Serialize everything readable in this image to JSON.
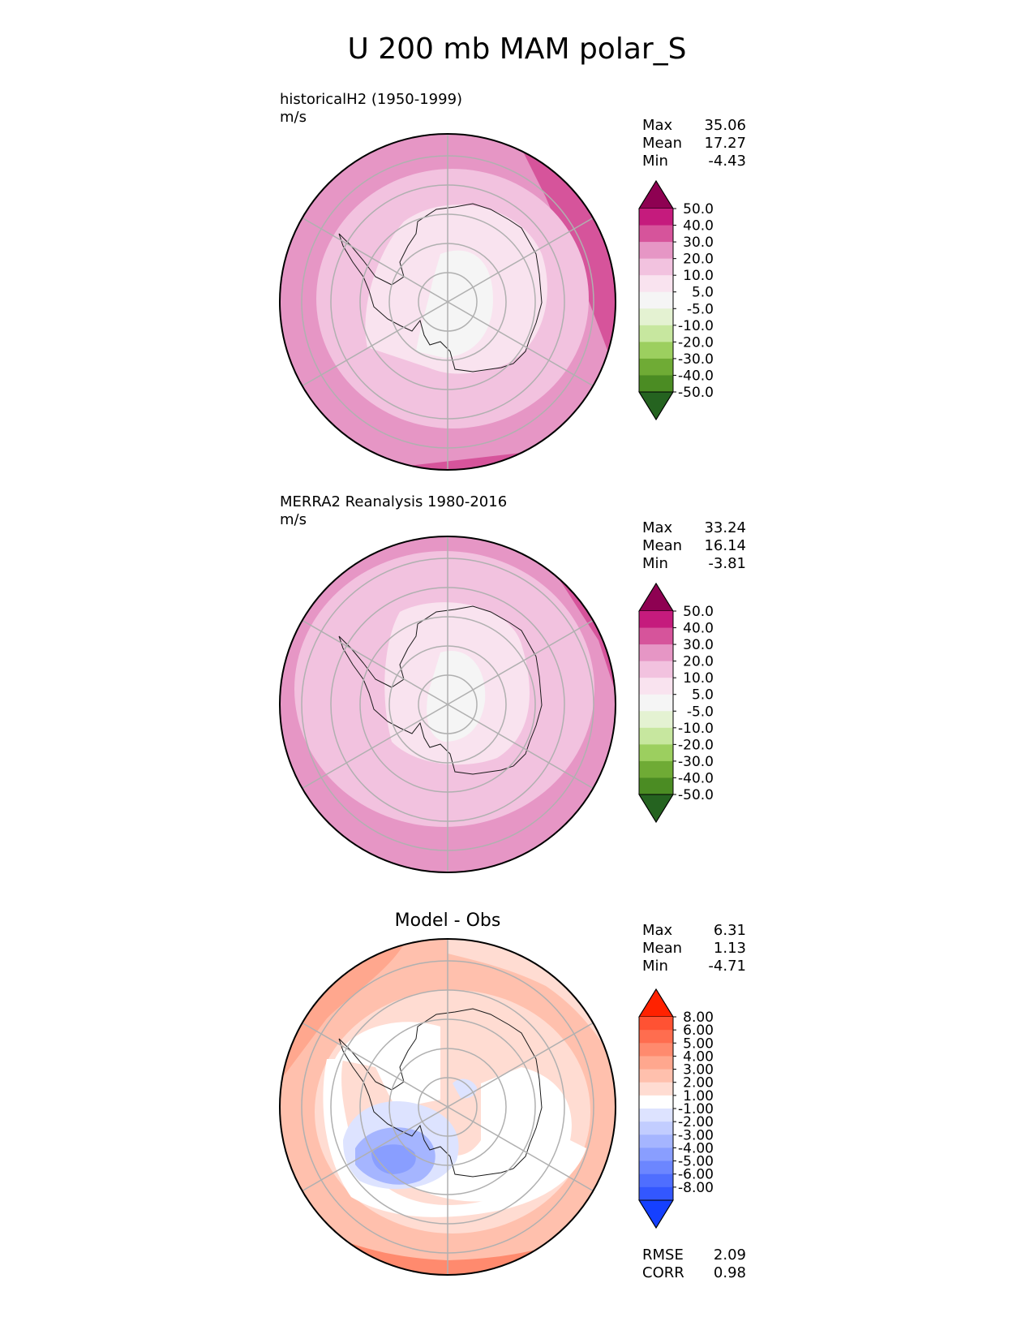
{
  "title": "U 200 mb MAM polar_S",
  "colors": {
    "seq": [
      "#8e0152",
      "#c51b7d",
      "#de77ae",
      "#f1b6da",
      "#fde0ef",
      "#f7f7f7",
      "#e6f5d0",
      "#b8e186",
      "#7fbc41",
      "#4d9221",
      "#276419"
    ],
    "pinkgreen": [
      "#8e0152",
      "#c51b7d",
      "#d6549b",
      "#e696c5",
      "#f2c2df",
      "#f9e3ef",
      "#f5f5f5",
      "#e4f2d2",
      "#c7e79f",
      "#9ccf5f",
      "#6fab35",
      "#4b8c23",
      "#256320"
    ],
    "diff": [
      "#ff2200",
      "#ff5233",
      "#ff6d4f",
      "#ff8a6e",
      "#ffa78e",
      "#ffc0ad",
      "#ffdcd2",
      "#ffffff",
      "#dde3ff",
      "#c2cdff",
      "#a5b5ff",
      "#899eff",
      "#6c86ff",
      "#4f6eff",
      "#3357ff",
      "#1540ff"
    ]
  },
  "panels": [
    {
      "id": "model",
      "label": "historicalH2 (1950-1999)",
      "units": "m/s",
      "stats": {
        "max_label": "Max",
        "max": "35.06",
        "mean_label": "Mean",
        "mean": "17.27",
        "min_label": "Min",
        "min": "-4.43"
      },
      "colorbar_ticks": [
        "50.0",
        "40.0",
        "30.0",
        "20.0",
        "10.0",
        "5.0",
        "-5.0",
        "-10.0",
        "-20.0",
        "-30.0",
        "-40.0",
        "-50.0"
      ]
    },
    {
      "id": "obs",
      "label": "MERRA2 Reanalysis 1980-2016",
      "units": "m/s",
      "stats": {
        "max_label": "Max",
        "max": "33.24",
        "mean_label": "Mean",
        "mean": "16.14",
        "min_label": "Min",
        "min": "-3.81"
      },
      "colorbar_ticks": [
        "50.0",
        "40.0",
        "30.0",
        "20.0",
        "10.0",
        "5.0",
        "-5.0",
        "-10.0",
        "-20.0",
        "-30.0",
        "-40.0",
        "-50.0"
      ]
    },
    {
      "id": "diff",
      "label": "Model - Obs",
      "stats": {
        "max_label": "Max",
        "max": "6.31",
        "mean_label": "Mean",
        "mean": "1.13",
        "min_label": "Min",
        "min": "-4.71"
      },
      "colorbar_ticks": [
        "8.00",
        "6.00",
        "5.00",
        "4.00",
        "3.00",
        "2.00",
        "1.00",
        "-1.00",
        "-2.00",
        "-3.00",
        "-4.00",
        "-5.00",
        "-6.00",
        "-8.00"
      ],
      "metrics": {
        "rmse_label": "RMSE",
        "rmse": "2.09",
        "corr_label": "CORR",
        "corr": "0.98"
      }
    }
  ],
  "chart_data": [
    {
      "type": "heatmap",
      "projection": "south polar stereographic",
      "title": "historicalH2 (1950-1999)",
      "units": "m/s",
      "levels": [
        -50,
        -40,
        -30,
        -20,
        -10,
        -5,
        5,
        10,
        20,
        30,
        40,
        50
      ],
      "max": 35.06,
      "mean": 17.27,
      "min": -4.43
    },
    {
      "type": "heatmap",
      "projection": "south polar stereographic",
      "title": "MERRA2 Reanalysis 1980-2016",
      "units": "m/s",
      "levels": [
        -50,
        -40,
        -30,
        -20,
        -10,
        -5,
        5,
        10,
        20,
        30,
        40,
        50
      ],
      "max": 33.24,
      "mean": 16.14,
      "min": -3.81
    },
    {
      "type": "heatmap",
      "projection": "south polar stereographic",
      "title": "Model - Obs",
      "levels": [
        -8,
        -6,
        -5,
        -4,
        -3,
        -2,
        -1,
        1,
        2,
        3,
        4,
        5,
        6,
        8
      ],
      "max": 6.31,
      "mean": 1.13,
      "min": -4.71,
      "rmse": 2.09,
      "corr": 0.98
    }
  ]
}
